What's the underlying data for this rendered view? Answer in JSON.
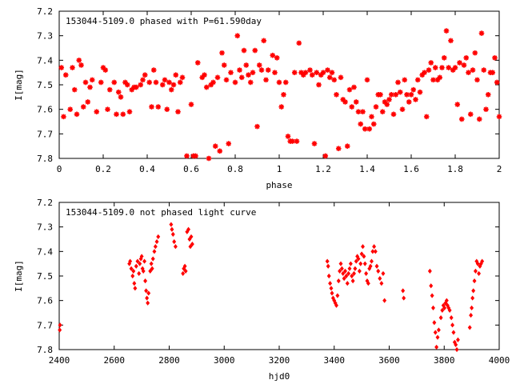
{
  "chart_data": [
    {
      "type": "scatter",
      "title": "153044-5109.0 phased with P=61.590day",
      "xlabel": "phase",
      "ylabel": "I[mag]",
      "xlim": [
        0,
        2
      ],
      "ylim": [
        7.8,
        7.2
      ],
      "y_inverted": true,
      "xticks": [
        0,
        0.2,
        0.4,
        0.6,
        0.8,
        1,
        1.2,
        1.4,
        1.6,
        1.8,
        2
      ],
      "xtick_labels": [
        "0",
        "0.2",
        "0.4",
        "0.6",
        "0.8",
        "1",
        "1.2",
        "1.4",
        "1.6",
        "1.8",
        "2"
      ],
      "yticks": [
        7.2,
        7.3,
        7.4,
        7.5,
        7.6,
        7.7,
        7.8
      ],
      "ytick_labels": [
        "7.2",
        "7.3",
        "7.4",
        "7.5",
        "7.6",
        "7.7",
        "7.8"
      ],
      "grid": false,
      "legend": "none",
      "marker_color": "#ff0000",
      "points": [
        [
          0.01,
          7.43
        ],
        [
          0.02,
          7.63
        ],
        [
          0.03,
          7.46
        ],
        [
          0.05,
          7.6
        ],
        [
          0.06,
          7.43
        ],
        [
          0.07,
          7.52
        ],
        [
          0.08,
          7.62
        ],
        [
          0.09,
          7.4
        ],
        [
          0.1,
          7.42
        ],
        [
          0.11,
          7.59
        ],
        [
          0.12,
          7.49
        ],
        [
          0.13,
          7.57
        ],
        [
          0.14,
          7.51
        ],
        [
          0.15,
          7.48
        ],
        [
          0.17,
          7.61
        ],
        [
          0.19,
          7.49
        ],
        [
          0.2,
          7.43
        ],
        [
          0.21,
          7.44
        ],
        [
          0.22,
          7.6
        ],
        [
          0.23,
          7.52
        ],
        [
          0.25,
          7.49
        ],
        [
          0.26,
          7.62
        ],
        [
          0.27,
          7.53
        ],
        [
          0.28,
          7.55
        ],
        [
          0.29,
          7.62
        ],
        [
          0.3,
          7.49
        ],
        [
          0.31,
          7.5
        ],
        [
          0.32,
          7.61
        ],
        [
          0.33,
          7.52
        ],
        [
          0.34,
          7.51
        ],
        [
          0.35,
          7.51
        ],
        [
          0.37,
          7.5
        ],
        [
          0.38,
          7.48
        ],
        [
          0.39,
          7.46
        ],
        [
          0.41,
          7.49
        ],
        [
          0.42,
          7.59
        ],
        [
          0.43,
          7.44
        ],
        [
          0.44,
          7.49
        ],
        [
          0.45,
          7.59
        ],
        [
          0.47,
          7.5
        ],
        [
          0.48,
          7.48
        ],
        [
          0.49,
          7.6
        ],
        [
          0.5,
          7.49
        ],
        [
          0.51,
          7.52
        ],
        [
          0.52,
          7.5
        ],
        [
          0.53,
          7.46
        ],
        [
          0.54,
          7.61
        ],
        [
          0.55,
          7.49
        ],
        [
          0.56,
          7.47
        ],
        [
          0.58,
          7.79
        ],
        [
          0.6,
          7.58
        ],
        [
          0.61,
          7.79
        ],
        [
          0.62,
          7.79
        ],
        [
          0.63,
          7.41
        ],
        [
          0.65,
          7.47
        ],
        [
          0.66,
          7.46
        ],
        [
          0.67,
          7.51
        ],
        [
          0.68,
          7.8
        ],
        [
          0.69,
          7.5
        ],
        [
          0.7,
          7.49
        ],
        [
          0.71,
          7.75
        ],
        [
          0.72,
          7.47
        ],
        [
          0.73,
          7.77
        ],
        [
          0.74,
          7.37
        ],
        [
          0.75,
          7.42
        ],
        [
          0.76,
          7.48
        ],
        [
          0.77,
          7.74
        ],
        [
          0.78,
          7.45
        ],
        [
          0.8,
          7.49
        ],
        [
          0.81,
          7.3
        ],
        [
          0.82,
          7.44
        ],
        [
          0.83,
          7.47
        ],
        [
          0.84,
          7.36
        ],
        [
          0.85,
          7.42
        ],
        [
          0.86,
          7.46
        ],
        [
          0.87,
          7.49
        ],
        [
          0.88,
          7.45
        ],
        [
          0.89,
          7.36
        ],
        [
          0.9,
          7.67
        ],
        [
          0.91,
          7.42
        ],
        [
          0.92,
          7.44
        ],
        [
          0.93,
          7.32
        ],
        [
          0.94,
          7.48
        ],
        [
          0.95,
          7.44
        ],
        [
          0.97,
          7.38
        ],
        [
          0.98,
          7.45
        ],
        [
          0.99,
          7.39
        ],
        [
          1.0,
          7.49
        ],
        [
          1.01,
          7.59
        ],
        [
          1.02,
          7.54
        ],
        [
          1.03,
          7.49
        ],
        [
          1.04,
          7.71
        ],
        [
          1.05,
          7.73
        ],
        [
          1.06,
          7.73
        ],
        [
          1.07,
          7.45
        ],
        [
          1.08,
          7.73
        ],
        [
          1.09,
          7.33
        ],
        [
          1.1,
          7.45
        ],
        [
          1.11,
          7.46
        ],
        [
          1.12,
          7.45
        ],
        [
          1.14,
          7.44
        ],
        [
          1.15,
          7.46
        ],
        [
          1.16,
          7.74
        ],
        [
          1.17,
          7.45
        ],
        [
          1.18,
          7.5
        ],
        [
          1.19,
          7.46
        ],
        [
          1.2,
          7.45
        ],
        [
          1.21,
          7.79
        ],
        [
          1.22,
          7.44
        ],
        [
          1.23,
          7.47
        ],
        [
          1.24,
          7.45
        ],
        [
          1.25,
          7.48
        ],
        [
          1.26,
          7.54
        ],
        [
          1.27,
          7.76
        ],
        [
          1.28,
          7.47
        ],
        [
          1.29,
          7.56
        ],
        [
          1.3,
          7.57
        ],
        [
          1.31,
          7.75
        ],
        [
          1.32,
          7.52
        ],
        [
          1.33,
          7.59
        ],
        [
          1.34,
          7.51
        ],
        [
          1.35,
          7.57
        ],
        [
          1.36,
          7.61
        ],
        [
          1.37,
          7.66
        ],
        [
          1.38,
          7.61
        ],
        [
          1.39,
          7.68
        ],
        [
          1.4,
          7.48
        ],
        [
          1.41,
          7.68
        ],
        [
          1.42,
          7.63
        ],
        [
          1.43,
          7.66
        ],
        [
          1.44,
          7.59
        ],
        [
          1.45,
          7.54
        ],
        [
          1.46,
          7.54
        ],
        [
          1.47,
          7.61
        ],
        [
          1.48,
          7.57
        ],
        [
          1.49,
          7.58
        ],
        [
          1.5,
          7.56
        ],
        [
          1.51,
          7.54
        ],
        [
          1.52,
          7.62
        ],
        [
          1.53,
          7.54
        ],
        [
          1.54,
          7.49
        ],
        [
          1.55,
          7.53
        ],
        [
          1.56,
          7.6
        ],
        [
          1.57,
          7.48
        ],
        [
          1.58,
          7.54
        ],
        [
          1.59,
          7.57
        ],
        [
          1.6,
          7.54
        ],
        [
          1.61,
          7.52
        ],
        [
          1.62,
          7.56
        ],
        [
          1.63,
          7.48
        ],
        [
          1.64,
          7.53
        ],
        [
          1.65,
          7.46
        ],
        [
          1.66,
          7.45
        ],
        [
          1.67,
          7.63
        ],
        [
          1.68,
          7.44
        ],
        [
          1.69,
          7.41
        ],
        [
          1.7,
          7.48
        ],
        [
          1.71,
          7.43
        ],
        [
          1.72,
          7.48
        ],
        [
          1.73,
          7.47
        ],
        [
          1.74,
          7.43
        ],
        [
          1.75,
          7.39
        ],
        [
          1.76,
          7.28
        ],
        [
          1.77,
          7.43
        ],
        [
          1.78,
          7.32
        ],
        [
          1.79,
          7.44
        ],
        [
          1.8,
          7.43
        ],
        [
          1.81,
          7.58
        ],
        [
          1.82,
          7.41
        ],
        [
          1.83,
          7.64
        ],
        [
          1.84,
          7.42
        ],
        [
          1.85,
          7.39
        ],
        [
          1.86,
          7.45
        ],
        [
          1.87,
          7.62
        ],
        [
          1.88,
          7.44
        ],
        [
          1.89,
          7.37
        ],
        [
          1.9,
          7.48
        ],
        [
          1.91,
          7.64
        ],
        [
          1.92,
          7.29
        ],
        [
          1.93,
          7.44
        ],
        [
          1.94,
          7.6
        ],
        [
          1.95,
          7.54
        ],
        [
          1.96,
          7.45
        ],
        [
          1.97,
          7.45
        ],
        [
          1.98,
          7.39
        ],
        [
          1.99,
          7.49
        ],
        [
          2.0,
          7.63
        ]
      ]
    },
    {
      "type": "scatter",
      "title": "153044-5109.0 not phased light curve",
      "xlabel": "hjd0",
      "ylabel": "I[mag]",
      "xlim": [
        2400,
        4000
      ],
      "ylim": [
        7.8,
        7.2
      ],
      "y_inverted": true,
      "xticks": [
        2400,
        2600,
        2800,
        3000,
        3200,
        3400,
        3600,
        3800,
        4000
      ],
      "xtick_labels": [
        "2400",
        "2600",
        "2800",
        "3000",
        "3200",
        "3400",
        "3600",
        "3800",
        "4000"
      ],
      "yticks": [
        7.2,
        7.3,
        7.4,
        7.5,
        7.6,
        7.7,
        7.8
      ],
      "ytick_labels": [
        "7.2",
        "7.3",
        "7.4",
        "7.5",
        "7.6",
        "7.7",
        "7.8"
      ],
      "grid": false,
      "legend": "none",
      "marker_color": "#ff0000",
      "points": [
        [
          2402,
          7.72
        ],
        [
          2403,
          7.7
        ],
        [
          2655,
          7.45
        ],
        [
          2658,
          7.44
        ],
        [
          2662,
          7.47
        ],
        [
          2667,
          7.5
        ],
        [
          2670,
          7.48
        ],
        [
          2673,
          7.53
        ],
        [
          2676,
          7.55
        ],
        [
          2680,
          7.46
        ],
        [
          2685,
          7.44
        ],
        [
          2690,
          7.49
        ],
        [
          2693,
          7.45
        ],
        [
          2697,
          7.43
        ],
        [
          2700,
          7.42
        ],
        [
          2703,
          7.47
        ],
        [
          2706,
          7.48
        ],
        [
          2710,
          7.44
        ],
        [
          2713,
          7.52
        ],
        [
          2716,
          7.56
        ],
        [
          2719,
          7.59
        ],
        [
          2722,
          7.61
        ],
        [
          2725,
          7.57
        ],
        [
          2731,
          7.48
        ],
        [
          2735,
          7.45
        ],
        [
          2738,
          7.47
        ],
        [
          2741,
          7.43
        ],
        [
          2746,
          7.4
        ],
        [
          2750,
          7.38
        ],
        [
          2755,
          7.36
        ],
        [
          2760,
          7.34
        ],
        [
          2807,
          7.29
        ],
        [
          2810,
          7.31
        ],
        [
          2814,
          7.33
        ],
        [
          2818,
          7.36
        ],
        [
          2823,
          7.38
        ],
        [
          2850,
          7.49
        ],
        [
          2853,
          7.47
        ],
        [
          2857,
          7.46
        ],
        [
          2860,
          7.48
        ],
        [
          2865,
          7.32
        ],
        [
          2870,
          7.31
        ],
        [
          2874,
          7.35
        ],
        [
          2877,
          7.38
        ],
        [
          2880,
          7.34
        ],
        [
          2884,
          7.37
        ],
        [
          3375,
          7.44
        ],
        [
          3378,
          7.46
        ],
        [
          3381,
          7.5
        ],
        [
          3385,
          7.53
        ],
        [
          3389,
          7.55
        ],
        [
          3392,
          7.57
        ],
        [
          3396,
          7.59
        ],
        [
          3400,
          7.6
        ],
        [
          3404,
          7.61
        ],
        [
          3408,
          7.62
        ],
        [
          3412,
          7.58
        ],
        [
          3416,
          7.52
        ],
        [
          3420,
          7.48
        ],
        [
          3424,
          7.45
        ],
        [
          3428,
          7.47
        ],
        [
          3432,
          7.49
        ],
        [
          3436,
          7.51
        ],
        [
          3440,
          7.48
        ],
        [
          3444,
          7.5
        ],
        [
          3448,
          7.53
        ],
        [
          3452,
          7.49
        ],
        [
          3456,
          7.47
        ],
        [
          3460,
          7.45
        ],
        [
          3464,
          7.5
        ],
        [
          3468,
          7.52
        ],
        [
          3472,
          7.49
        ],
        [
          3476,
          7.47
        ],
        [
          3480,
          7.44
        ],
        [
          3484,
          7.42
        ],
        [
          3488,
          7.43
        ],
        [
          3492,
          7.48
        ],
        [
          3496,
          7.45
        ],
        [
          3500,
          7.41
        ],
        [
          3504,
          7.38
        ],
        [
          3508,
          7.42
        ],
        [
          3512,
          7.45
        ],
        [
          3516,
          7.49
        ],
        [
          3520,
          7.52
        ],
        [
          3524,
          7.53
        ],
        [
          3528,
          7.47
        ],
        [
          3532,
          7.46
        ],
        [
          3536,
          7.44
        ],
        [
          3540,
          7.4
        ],
        [
          3545,
          7.38
        ],
        [
          3550,
          7.4
        ],
        [
          3555,
          7.46
        ],
        [
          3560,
          7.48
        ],
        [
          3566,
          7.51
        ],
        [
          3572,
          7.53
        ],
        [
          3578,
          7.49
        ],
        [
          3583,
          7.6
        ],
        [
          3650,
          7.56
        ],
        [
          3653,
          7.59
        ],
        [
          3748,
          7.48
        ],
        [
          3752,
          7.54
        ],
        [
          3756,
          7.58
        ],
        [
          3760,
          7.63
        ],
        [
          3764,
          7.69
        ],
        [
          3768,
          7.73
        ],
        [
          3772,
          7.79
        ],
        [
          3776,
          7.75
        ],
        [
          3780,
          7.72
        ],
        [
          3788,
          7.67
        ],
        [
          3793,
          7.64
        ],
        [
          3797,
          7.62
        ],
        [
          3801,
          7.63
        ],
        [
          3805,
          7.61
        ],
        [
          3809,
          7.6
        ],
        [
          3812,
          7.62
        ],
        [
          3816,
          7.63
        ],
        [
          3820,
          7.64
        ],
        [
          3826,
          7.67
        ],
        [
          3830,
          7.7
        ],
        [
          3834,
          7.73
        ],
        [
          3838,
          7.77
        ],
        [
          3842,
          7.78
        ],
        [
          3846,
          7.8
        ],
        [
          3850,
          7.76
        ],
        [
          3893,
          7.71
        ],
        [
          3897,
          7.66
        ],
        [
          3900,
          7.63
        ],
        [
          3903,
          7.59
        ],
        [
          3906,
          7.56
        ],
        [
          3910,
          7.52
        ],
        [
          3914,
          7.48
        ],
        [
          3918,
          7.44
        ],
        [
          3922,
          7.45
        ],
        [
          3926,
          7.49
        ],
        [
          3930,
          7.46
        ],
        [
          3934,
          7.45
        ],
        [
          3938,
          7.44
        ]
      ]
    }
  ]
}
